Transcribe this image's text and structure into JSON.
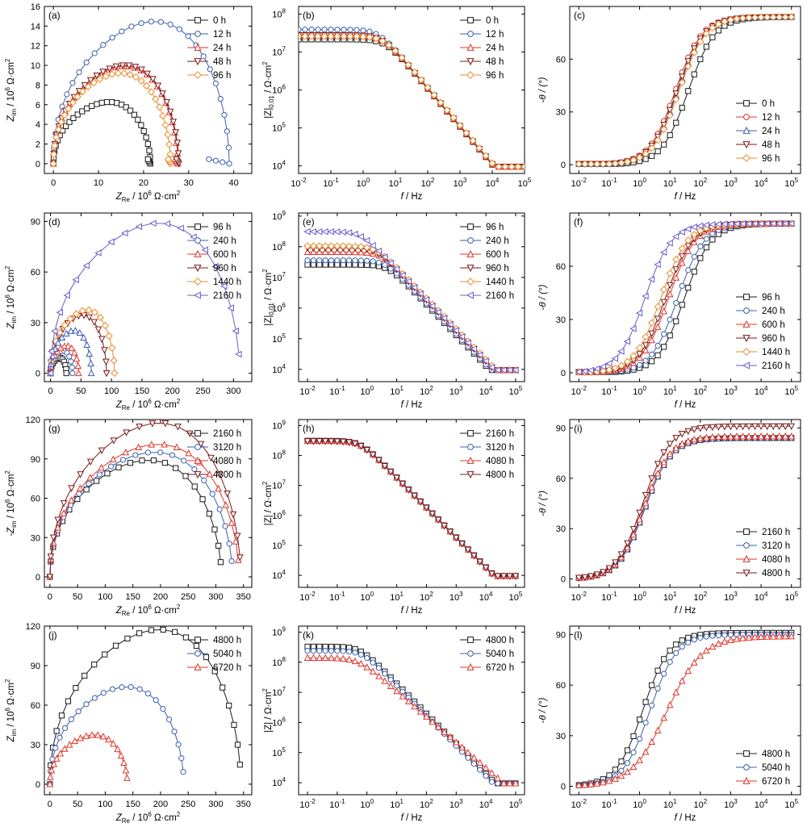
{
  "colors": {
    "black": "#1a1a1a",
    "blue": "#3a5fb0",
    "red": "#e0342a",
    "darkred": "#7a1717",
    "orange": "#ee8a2a",
    "purple": "#6a5acd"
  },
  "labels": {
    "zre": "Z",
    "zre_sub": "Re",
    "zre_unit": " / 10",
    "zre_exp": "6",
    "zre_unit2": " Ω·cm",
    "zim": "Z",
    "zim_sub": "im",
    "zim_neg": "-Z",
    "modz001": "|Z|",
    "modz001_sub": "0.01",
    "modz": "|Z|",
    "modz_unit": " / Ω·cm",
    "sq": "2",
    "freq": "f",
    "freq_unit": " / Hz",
    "phase": "-θ / (°)"
  },
  "chart_data": [
    {
      "panel": "(a)",
      "type": "scatter",
      "kind": "nyquist",
      "xlim": [
        -2,
        44
      ],
      "ylim": [
        -1,
        16
      ],
      "xticks": [
        0,
        10,
        20,
        30,
        40
      ],
      "yticks": [
        0,
        2,
        4,
        6,
        8,
        10,
        12,
        14,
        16
      ],
      "ylabel_key": "zim",
      "legend": "top-right",
      "series": [
        {
          "name": "0 h",
          "color": "black",
          "marker": "square",
          "R": 21.5,
          "H": 6.2,
          "tail": 0.3,
          "n": 30
        },
        {
          "name": "12 h",
          "color": "blue",
          "marker": "circle",
          "R": 39.0,
          "H": 14.3,
          "tail": 2.5,
          "n": 28
        },
        {
          "name": "24 h",
          "color": "red",
          "marker": "tri-up",
          "R": 27.6,
          "H": 9.8,
          "tail": 0.3,
          "n": 30
        },
        {
          "name": "48 h",
          "color": "darkred",
          "marker": "tri-down",
          "R": 27.8,
          "H": 9.9,
          "tail": 0.3,
          "n": 30
        },
        {
          "name": "96 h",
          "color": "orange",
          "marker": "diamond",
          "R": 26.0,
          "H": 9.1,
          "tail": 0.3,
          "n": 30
        }
      ]
    },
    {
      "panel": "(b)",
      "type": "line",
      "kind": "bode-mag",
      "xlog": [
        -2,
        5
      ],
      "ylog": [
        3.8,
        8.2
      ],
      "xticks": [
        -2,
        -1,
        0,
        1,
        2,
        3,
        4,
        5
      ],
      "yticks": [
        4,
        5,
        6,
        7,
        8
      ],
      "ylabel_key": "modz001",
      "series": [
        {
          "name": "0 h",
          "color": "black",
          "marker": "square",
          "low": 21500000.0,
          "fc": 5
        },
        {
          "name": "12 h",
          "color": "blue",
          "marker": "circle",
          "low": 39000000.0,
          "fc": 3
        },
        {
          "name": "24 h",
          "color": "red",
          "marker": "tri-up",
          "low": 27600000.0,
          "fc": 4
        },
        {
          "name": "48 h",
          "color": "darkred",
          "marker": "tri-down",
          "low": 27800000.0,
          "fc": 4
        },
        {
          "name": "96 h",
          "color": "orange",
          "marker": "diamond",
          "low": 26000000.0,
          "fc": 4.5
        }
      ]
    },
    {
      "panel": "(c)",
      "type": "line",
      "kind": "bode-phase",
      "xlog": [
        -2.3,
        5.3
      ],
      "ylim": [
        -5,
        90
      ],
      "xticks": [
        -2,
        -1,
        0,
        1,
        2,
        3,
        4,
        5
      ],
      "yticks": [
        0,
        30,
        60
      ],
      "legend": "middle-right",
      "series": [
        {
          "name": "0 h",
          "color": "black",
          "marker": "square",
          "fc": 40,
          "hi": 84
        },
        {
          "name": "12 h",
          "color": "red",
          "marker": "circle",
          "fc": 15,
          "hi": 84
        },
        {
          "name": "24 h",
          "color": "blue",
          "marker": "tri-up",
          "fc": 18,
          "hi": 84
        },
        {
          "name": "48 h",
          "color": "darkred",
          "marker": "tri-down",
          "fc": 17,
          "hi": 84
        },
        {
          "name": "96 h",
          "color": "orange",
          "marker": "diamond",
          "fc": 20,
          "hi": 84
        }
      ]
    },
    {
      "panel": "(d)",
      "type": "scatter",
      "kind": "nyquist",
      "xlim": [
        -10,
        330
      ],
      "ylim": [
        -5,
        95
      ],
      "xticks": [
        0,
        50,
        100,
        150,
        200,
        250,
        300
      ],
      "yticks": [
        0,
        30,
        60,
        90
      ],
      "ylabel_key": "zim",
      "series": [
        {
          "name": "96 h",
          "color": "black",
          "marker": "square",
          "R": 26,
          "H": 9,
          "tail": 0,
          "n": 12
        },
        {
          "name": "240 h",
          "color": "blue",
          "marker": "circle",
          "R": 36,
          "H": 13,
          "tail": 0,
          "n": 12
        },
        {
          "name": "600 h",
          "color": "red",
          "marker": "tri-up",
          "R": 46,
          "H": 16,
          "tail": 0,
          "n": 12
        },
        {
          "name": "960 h",
          "color": "darkred",
          "marker": "tri-down",
          "R": 92,
          "H": 34,
          "tail": 0,
          "n": 16
        },
        {
          "name": "1440 h",
          "color": "orange",
          "marker": "diamond",
          "R": 105,
          "H": 37,
          "tail": 0,
          "n": 16
        },
        {
          "name": "600 h",
          "color": "blue",
          "marker": "tri-up",
          "R": 67,
          "H": 25,
          "tail": 0,
          "n": 14,
          "legend": false
        },
        {
          "name": "2160 h",
          "color": "purple",
          "marker": "tri-left",
          "R": 310,
          "H": 88,
          "tail": 0,
          "n": 20,
          "partial": true
        }
      ]
    },
    {
      "panel": "(e)",
      "type": "line",
      "kind": "bode-mag",
      "xlog": [
        -2.3,
        5.3
      ],
      "ylog": [
        3.6,
        9.1
      ],
      "xticks": [
        -2,
        -1,
        0,
        1,
        2,
        3,
        4,
        5
      ],
      "yticks": [
        4,
        5,
        6,
        7,
        8,
        9
      ],
      "ylabel_key": "modz001",
      "series": [
        {
          "name": "96 h",
          "color": "black",
          "marker": "square",
          "low": 26000000.0,
          "fc": 5
        },
        {
          "name": "240 h",
          "color": "blue",
          "marker": "circle",
          "low": 36000000.0,
          "fc": 4
        },
        {
          "name": "600 h",
          "color": "red",
          "marker": "tri-up",
          "low": 67000000.0,
          "fc": 3
        },
        {
          "name": "960 h",
          "color": "darkred",
          "marker": "tri-down",
          "low": 92000000.0,
          "fc": 2
        },
        {
          "name": "1440 h",
          "color": "orange",
          "marker": "diamond",
          "low": 105000000.0,
          "fc": 2
        },
        {
          "name": "2160 h",
          "color": "purple",
          "marker": "tri-left",
          "low": 310000000.0,
          "fc": 0.6
        }
      ]
    },
    {
      "panel": "(f)",
      "type": "line",
      "kind": "bode-phase",
      "xlog": [
        -2.3,
        5.3
      ],
      "ylim": [
        -5,
        90
      ],
      "xticks": [
        -2,
        -1,
        0,
        1,
        2,
        3,
        4,
        5
      ],
      "yticks": [
        0,
        30,
        60
      ],
      "series": [
        {
          "name": "96 h",
          "color": "black",
          "marker": "square",
          "fc": 30,
          "hi": 84
        },
        {
          "name": "240 h",
          "color": "blue",
          "marker": "circle",
          "fc": 18,
          "hi": 84
        },
        {
          "name": "600 h",
          "color": "red",
          "marker": "tri-up",
          "fc": 9,
          "hi": 84
        },
        {
          "name": "960 h",
          "color": "darkred",
          "marker": "tri-down",
          "fc": 7,
          "hi": 84
        },
        {
          "name": "1440 h",
          "color": "orange",
          "marker": "diamond",
          "fc": 5,
          "hi": 84
        },
        {
          "name": "2160 h",
          "color": "purple",
          "marker": "tri-left",
          "fc": 1.5,
          "hi": 84
        }
      ]
    },
    {
      "panel": "(g)",
      "type": "scatter",
      "kind": "nyquist",
      "xlim": [
        -10,
        365
      ],
      "ylim": [
        -8,
        120
      ],
      "xticks": [
        0,
        50,
        100,
        150,
        200,
        250,
        300,
        350
      ],
      "yticks": [
        0,
        30,
        60,
        90,
        120
      ],
      "ylabel_key": "zim_neg",
      "series": [
        {
          "name": "2160 h",
          "color": "black",
          "marker": "square",
          "R": 310,
          "H": 88,
          "tail": 0,
          "n": 22,
          "partial": true
        },
        {
          "name": "3120 h",
          "color": "blue",
          "marker": "circle",
          "R": 330,
          "H": 94,
          "tail": 0,
          "n": 22,
          "partial": true
        },
        {
          "name": "4080 h",
          "color": "red",
          "marker": "tri-up",
          "R": 342,
          "H": 100,
          "tail": 0,
          "n": 22,
          "partial": true
        },
        {
          "name": "4800 h",
          "color": "darkred",
          "marker": "tri-down",
          "R": 345,
          "H": 116,
          "tail": 0,
          "n": 22,
          "partial": true
        }
      ]
    },
    {
      "panel": "(h)",
      "type": "line",
      "kind": "bode-mag",
      "xlog": [
        -2.3,
        5.3
      ],
      "ylog": [
        3.6,
        9.2
      ],
      "xticks": [
        -2,
        -1,
        0,
        1,
        2,
        3,
        4,
        5
      ],
      "yticks": [
        4,
        5,
        6,
        7,
        8,
        9
      ],
      "ylabel_key": "modz",
      "series": [
        {
          "name": "2160 h",
          "color": "black",
          "marker": "square",
          "low": 310000000.0,
          "fc": 0.6
        },
        {
          "name": "3120 h",
          "color": "blue",
          "marker": "circle",
          "low": 310000000.0,
          "fc": 0.6
        },
        {
          "name": "4080 h",
          "color": "red",
          "marker": "tri-up",
          "low": 305000000.0,
          "fc": 0.6
        },
        {
          "name": "4800 h",
          "color": "darkred",
          "marker": "tri-down",
          "low": 300000000.0,
          "fc": 0.6
        }
      ]
    },
    {
      "panel": "(i)",
      "type": "line",
      "kind": "bode-phase",
      "xlog": [
        -2.3,
        5.3
      ],
      "ylim": [
        -5,
        95
      ],
      "xticks": [
        -2,
        -1,
        0,
        1,
        2,
        3,
        4,
        5
      ],
      "yticks": [
        0,
        30,
        60,
        90
      ],
      "series": [
        {
          "name": "2160 h",
          "color": "black",
          "marker": "square",
          "fc": 1.5,
          "hi": 84
        },
        {
          "name": "3120 h",
          "color": "blue",
          "marker": "circle",
          "fc": 1.5,
          "hi": 84
        },
        {
          "name": "4080 h",
          "color": "red",
          "marker": "tri-up",
          "fc": 1.4,
          "hi": 85
        },
        {
          "name": "4800 h",
          "color": "darkred",
          "marker": "tri-down",
          "fc": 1.3,
          "hi": 91
        }
      ]
    },
    {
      "panel": "(j)",
      "type": "scatter",
      "kind": "nyquist",
      "xlim": [
        -10,
        365
      ],
      "ylim": [
        -8,
        120
      ],
      "xticks": [
        0,
        50,
        100,
        150,
        200,
        250,
        300,
        350
      ],
      "yticks": [
        0,
        30,
        60,
        90,
        120
      ],
      "ylabel_key": "zim",
      "series": [
        {
          "name": "4800 h",
          "color": "black",
          "marker": "square",
          "R": 345,
          "H": 116,
          "tail": 0,
          "n": 24,
          "partial": true
        },
        {
          "name": "5040 h",
          "color": "blue",
          "marker": "circle",
          "R": 242,
          "H": 73,
          "tail": 0,
          "n": 22,
          "partial": true
        },
        {
          "name": "6720 h",
          "color": "red",
          "marker": "tri-up",
          "R": 140,
          "H": 37,
          "tail": 0,
          "n": 20,
          "partial": true
        }
      ]
    },
    {
      "panel": "(k)",
      "type": "line",
      "kind": "bode-mag",
      "xlog": [
        -2.3,
        5.3
      ],
      "ylog": [
        3.6,
        9.2
      ],
      "xticks": [
        -2,
        -1,
        0,
        1,
        2,
        3,
        4,
        5
      ],
      "yticks": [
        4,
        5,
        6,
        7,
        8,
        9
      ],
      "ylabel_key": "modz",
      "series": [
        {
          "name": "4800 h",
          "color": "black",
          "marker": "square",
          "low": 330000000.0,
          "fc": 0.6
        },
        {
          "name": "5040 h",
          "color": "blue",
          "marker": "circle",
          "low": 240000000.0,
          "fc": 0.7
        },
        {
          "name": "6720 h",
          "color": "red",
          "marker": "tri-up",
          "low": 140000000.0,
          "fc": 0.5,
          "soft": true
        }
      ]
    },
    {
      "panel": "(l)",
      "type": "line",
      "kind": "bode-phase",
      "xlog": [
        -2.3,
        5.3
      ],
      "ylim": [
        -5,
        95
      ],
      "xticks": [
        -2,
        -1,
        0,
        1,
        2,
        3,
        4,
        5
      ],
      "yticks": [
        0,
        30,
        60,
        90
      ],
      "series": [
        {
          "name": "4800 h",
          "color": "black",
          "marker": "square",
          "fc": 1.3,
          "hi": 91
        },
        {
          "name": "5040 h",
          "color": "blue",
          "marker": "circle",
          "fc": 2.2,
          "hi": 90
        },
        {
          "name": "6720 h",
          "color": "red",
          "marker": "tri-up",
          "fc": 8,
          "hi": 89,
          "soft": true
        }
      ]
    }
  ]
}
